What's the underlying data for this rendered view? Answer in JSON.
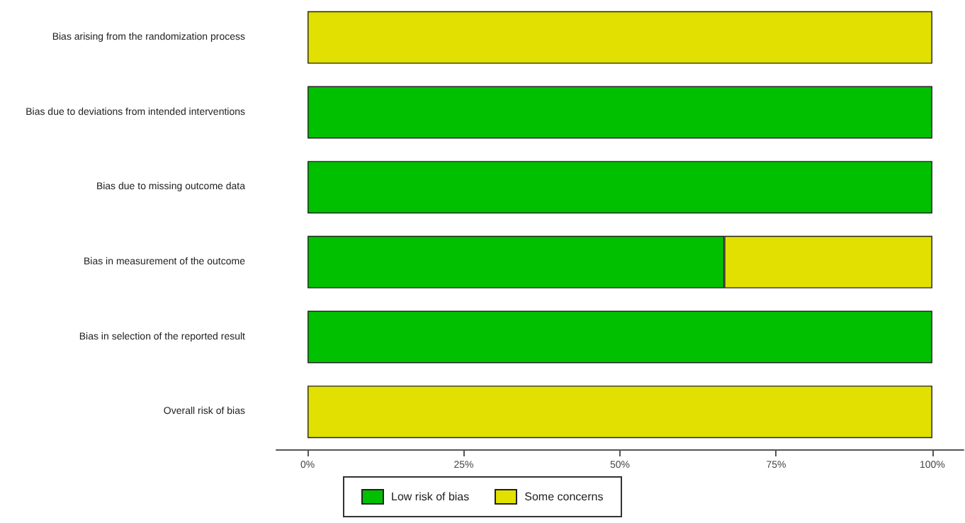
{
  "chart_data": {
    "type": "bar",
    "orientation": "horizontal",
    "stacked": true,
    "categories": [
      "Bias arising from the randomization process",
      "Bias due to deviations from intended interventions",
      "Bias due to missing outcome data",
      "Bias in measurement of the outcome",
      "Bias in selection of the reported result",
      "Overall risk of bias"
    ],
    "series": [
      {
        "name": "Low risk of bias",
        "color": "#00c000",
        "values": [
          0,
          100,
          100,
          66.7,
          100,
          0
        ]
      },
      {
        "name": "Some concerns",
        "color": "#e1e000",
        "values": [
          100,
          0,
          0,
          33.3,
          0,
          100
        ]
      }
    ],
    "xlim": [
      -5,
      105
    ],
    "xticks": [
      {
        "value": 0,
        "label": "0%"
      },
      {
        "value": 25,
        "label": "25%"
      },
      {
        "value": 50,
        "label": "50%"
      },
      {
        "value": 75,
        "label": "75%"
      },
      {
        "value": 100,
        "label": "100%"
      }
    ],
    "grid": false,
    "legend": "bottom"
  }
}
